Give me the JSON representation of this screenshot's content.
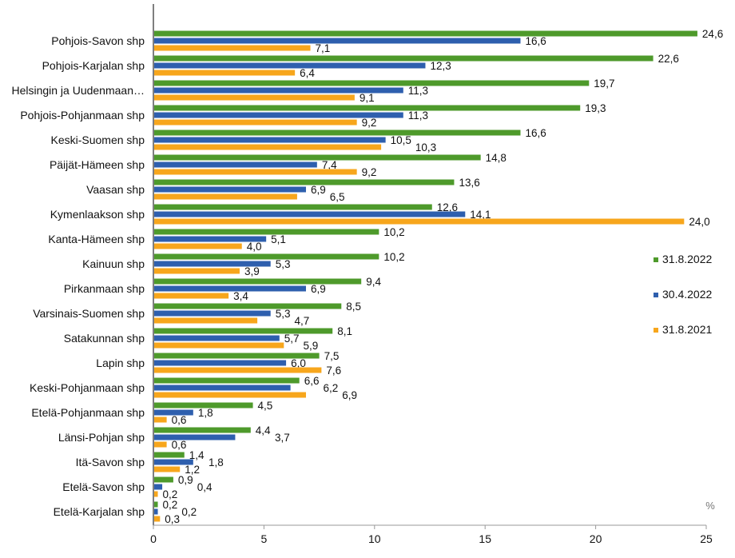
{
  "chart_data": {
    "type": "bar",
    "orientation": "horizontal",
    "categories": [
      "Pohjois-Savon shp",
      "Pohjois-Karjalan shp",
      "Helsingin ja Uudenmaan…",
      "Pohjois-Pohjanmaan shp",
      "Keski-Suomen shp",
      "Päijät-Hämeen shp",
      "Vaasan shp",
      "Kymenlaakson shp",
      "Kanta-Hämeen shp",
      "Kainuun shp",
      "Pirkanmaan shp",
      "Varsinais-Suomen shp",
      "Satakunnan shp",
      "Lapin shp",
      "Keski-Pohjanmaan shp",
      "Etelä-Pohjanmaan shp",
      "Länsi-Pohjan shp",
      "Itä-Savon shp",
      "Etelä-Savon shp",
      "Etelä-Karjalan shp"
    ],
    "series": [
      {
        "name": "31.8.2022",
        "color": "#4e9a2b",
        "values": [
          24.6,
          22.6,
          19.7,
          19.3,
          16.6,
          14.8,
          13.6,
          12.6,
          10.2,
          10.2,
          9.4,
          8.5,
          8.1,
          7.5,
          6.6,
          4.5,
          4.4,
          1.4,
          0.9,
          0.2
        ]
      },
      {
        "name": "30.4.2022",
        "color": "#2e5fae",
        "values": [
          16.6,
          12.3,
          11.3,
          11.3,
          10.5,
          7.4,
          6.9,
          14.1,
          5.1,
          5.3,
          6.9,
          5.3,
          5.7,
          6.0,
          6.2,
          1.8,
          3.7,
          1.8,
          0.4,
          0.2
        ]
      },
      {
        "name": "31.8.2021",
        "color": "#f7a61c",
        "values": [
          7.1,
          6.4,
          9.1,
          9.2,
          10.3,
          9.2,
          6.5,
          24.0,
          4.0,
          3.9,
          3.4,
          4.7,
          5.9,
          7.6,
          6.9,
          0.6,
          0.6,
          1.2,
          0.2,
          0.3
        ]
      }
    ],
    "xlim": [
      0,
      25
    ],
    "xticks": [
      "0",
      "5",
      "10",
      "15",
      "20",
      "25"
    ],
    "xunit": "%",
    "grid": false,
    "legend_placement": "right",
    "decimal_separator": ","
  }
}
